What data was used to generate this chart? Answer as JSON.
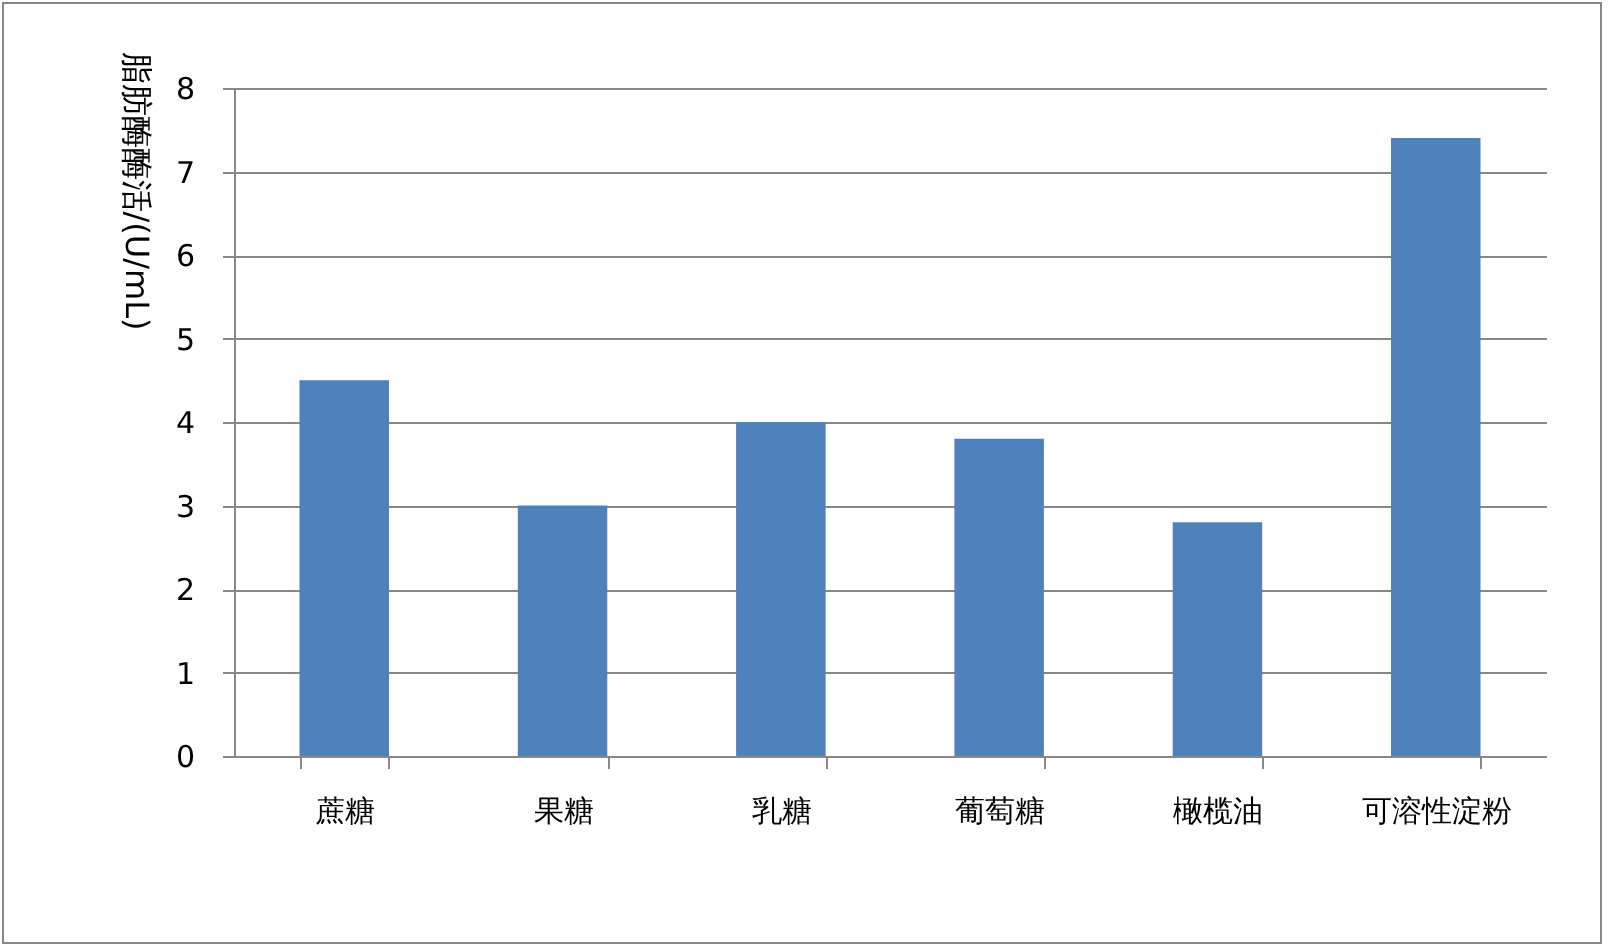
{
  "chart_data": {
    "type": "bar",
    "ylabel": "脂肪酶酶活/(U/mL)",
    "categories": [
      "蔗糖",
      "果糖",
      "乳糖",
      "葡萄糖",
      "橄榄油",
      "可溶性淀粉"
    ],
    "series": [
      {
        "color": "#4f81bd",
        "values": [
          4.5,
          3.0,
          4.0,
          3.8,
          2.8,
          7.4
        ]
      }
    ],
    "ylim": [
      0,
      8
    ],
    "yticks": [
      0,
      1,
      2,
      3,
      4,
      5,
      6,
      7,
      8
    ],
    "grid": "y"
  }
}
